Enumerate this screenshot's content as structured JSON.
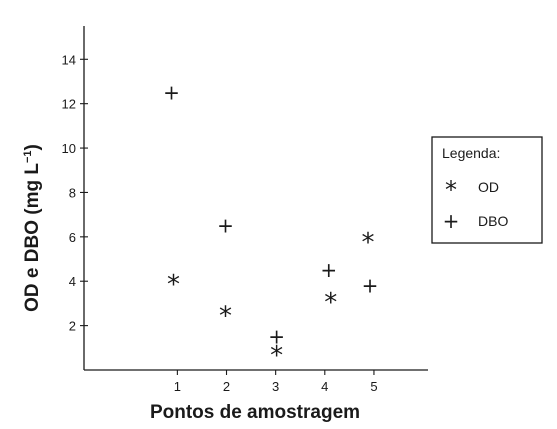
{
  "chart_data": {
    "type": "scatter",
    "xlabel": "Pontos de amostragem",
    "ylabel_main": "OD e DBO (mg L",
    "ylabel_sup": "−1",
    "ylabel_close": ")",
    "x_ticks": [
      {
        "value": 1,
        "label": "1"
      },
      {
        "value": 2,
        "label": "2"
      },
      {
        "value": 3,
        "label": "3"
      },
      {
        "value": 4,
        "label": "4"
      },
      {
        "value": 5,
        "label": "5"
      }
    ],
    "y_ticks": [
      {
        "value": 2,
        "label": "2"
      },
      {
        "value": 4,
        "label": "4"
      },
      {
        "value": 6,
        "label": "6"
      },
      {
        "value": 8,
        "label": "8"
      },
      {
        "value": 10,
        "label": "10"
      },
      {
        "value": 12,
        "label": "12"
      },
      {
        "value": 14,
        "label": "14"
      }
    ],
    "xlim": [
      -0.9,
      6.1
    ],
    "ylim": [
      0,
      15.5
    ],
    "grid": false,
    "legend_position": "right",
    "series": [
      {
        "name": "OD",
        "marker": "*",
        "points": [
          [
            0.92,
            4.0
          ],
          [
            1.98,
            2.6
          ],
          [
            3.02,
            0.8
          ],
          [
            4.12,
            3.2
          ],
          [
            4.88,
            5.9
          ]
        ]
      },
      {
        "name": "DBO",
        "marker": "+",
        "points": [
          [
            0.88,
            12.5
          ],
          [
            1.98,
            6.5
          ],
          [
            3.02,
            1.5
          ],
          [
            4.08,
            4.5
          ],
          [
            4.92,
            3.8
          ]
        ]
      }
    ]
  },
  "legend": {
    "title": "Legenda:",
    "items": [
      {
        "symbol": "*",
        "label": "OD"
      },
      {
        "symbol": "+",
        "label": "DBO"
      }
    ]
  }
}
